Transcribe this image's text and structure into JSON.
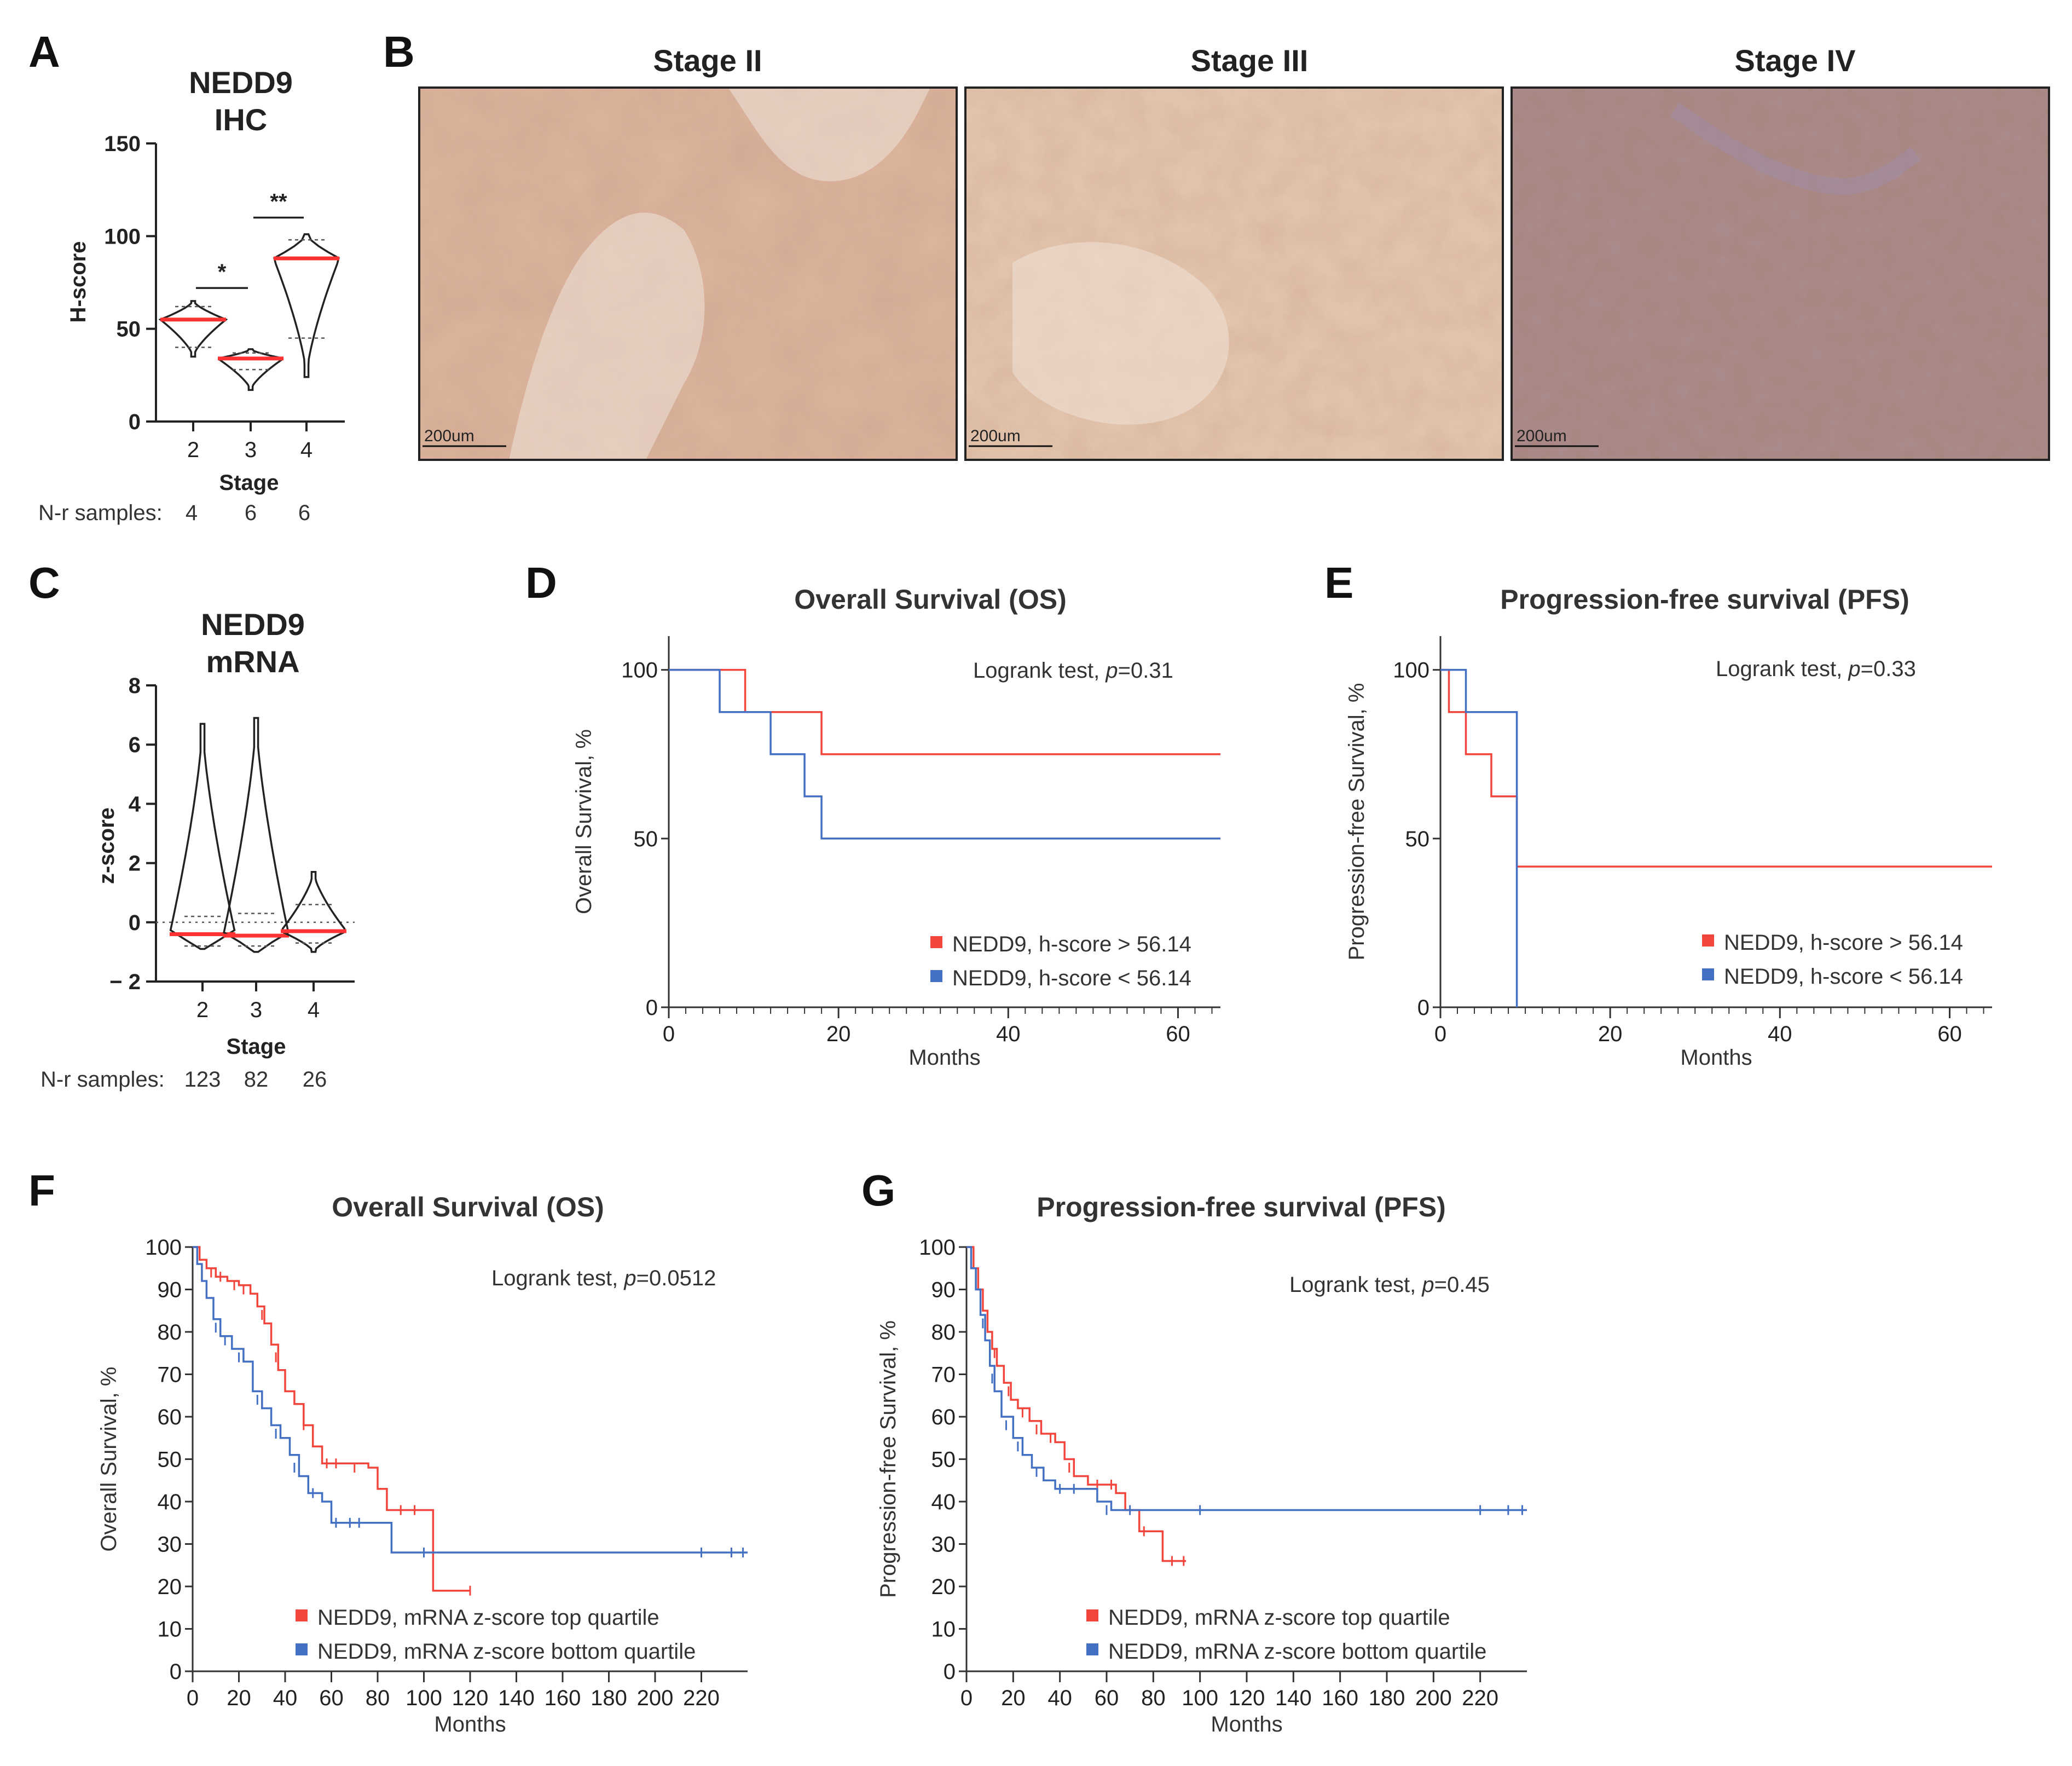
{
  "panel_labels": {
    "a": "A",
    "b": "B",
    "c": "C",
    "d": "D",
    "e": "E",
    "f": "F",
    "g": "G"
  },
  "colors": {
    "high": "#f2463c",
    "low": "#4470c4",
    "median": "#ff3333"
  },
  "panel_a": {
    "title1": "NEDD9",
    "title2": "IHC",
    "nr_label": "N-r samples:",
    "nr": [
      "4",
      "6",
      "6"
    ]
  },
  "panel_b": {
    "images": [
      {
        "title": "Stage II",
        "scale": "200um",
        "tone": "#dcb49c"
      },
      {
        "title": "Stage III",
        "scale": "200um",
        "tone": "#e3c4ad"
      },
      {
        "title": "Stage IV",
        "scale": "200um",
        "tone": "#a8857f"
      }
    ]
  },
  "panel_c": {
    "title1": "NEDD9",
    "title2": "mRNA",
    "nr_label": "N-r samples:",
    "nr": [
      "123",
      "82",
      "26"
    ]
  },
  "chart_data": [
    {
      "id": "A",
      "type": "violin",
      "categories": [
        "2",
        "3",
        "4"
      ],
      "xlabel": "Stage",
      "ylabel": "H-score",
      "ylim": [
        0,
        150
      ],
      "yticks": [
        "0",
        "50",
        "100",
        "150"
      ],
      "violins": [
        {
          "min": 35,
          "max": 65,
          "median": 55,
          "q1": 40,
          "q3": 62
        },
        {
          "min": 17,
          "max": 39,
          "median": 34,
          "q1": 28,
          "q3": 37
        },
        {
          "min": 24,
          "max": 101,
          "median": 88,
          "q1": 45,
          "q3": 98
        }
      ],
      "significance": [
        {
          "from": 0,
          "to": 1,
          "y": 72,
          "label": "*"
        },
        {
          "from": 1,
          "to": 2,
          "y": 110,
          "label": "**"
        }
      ]
    },
    {
      "id": "C",
      "type": "violin",
      "categories": [
        "2",
        "3",
        "4"
      ],
      "xlabel": "Stage",
      "ylabel": "z-score",
      "ylim": [
        -2,
        8
      ],
      "yticks": [
        "− 2",
        "0",
        "2",
        "4",
        "6",
        "8"
      ],
      "zero_line": true,
      "violins": [
        {
          "min": -0.9,
          "max": 6.7,
          "median": -0.4,
          "q1": -0.8,
          "q3": 0.2
        },
        {
          "min": -1.0,
          "max": 6.9,
          "median": -0.45,
          "q1": -0.8,
          "q3": 0.3
        },
        {
          "min": -1.0,
          "max": 1.7,
          "median": -0.3,
          "q1": -0.7,
          "q3": 0.6
        }
      ]
    },
    {
      "id": "D",
      "type": "line",
      "title": "Overall Survival (OS)",
      "xlabel": "Months",
      "ylabel": "Overall Survival, %",
      "xlim": [
        0,
        65
      ],
      "ylim": [
        0,
        110
      ],
      "xticks": [
        "0",
        "20",
        "40",
        "60"
      ],
      "yticks": [
        "0",
        "50",
        "100"
      ],
      "note_prefix": "Logrank test, ",
      "note_p": "p",
      "note_value": "=0.31",
      "series": [
        {
          "name": "NEDD9, h-score > 56.14",
          "color": "#f2463c",
          "steps": [
            [
              0,
              100
            ],
            [
              9,
              87.5
            ],
            [
              18,
              75
            ],
            [
              65,
              75
            ]
          ]
        },
        {
          "name": "NEDD9, h-score < 56.14",
          "color": "#4470c4",
          "steps": [
            [
              0,
              100
            ],
            [
              6,
              87.5
            ],
            [
              12,
              75
            ],
            [
              16,
              62.5
            ],
            [
              18,
              50
            ],
            [
              65,
              50
            ]
          ]
        }
      ]
    },
    {
      "id": "E",
      "type": "line",
      "title": "Progression-free survival (PFS)",
      "xlabel": "Months",
      "ylabel": "Progression-free Survival, %",
      "xlim": [
        0,
        65
      ],
      "ylim": [
        0,
        110
      ],
      "xticks": [
        "0",
        "20",
        "40",
        "60"
      ],
      "yticks": [
        "0",
        "50",
        "100"
      ],
      "note_prefix": "Logrank test, ",
      "note_p": "p",
      "note_value": "=0.33",
      "series": [
        {
          "name": "NEDD9, h-score > 56.14",
          "color": "#f2463c",
          "steps": [
            [
              0,
              100
            ],
            [
              1,
              87.5
            ],
            [
              3,
              75
            ],
            [
              6,
              62.5
            ],
            [
              9,
              41.7
            ],
            [
              65,
              41.7
            ]
          ]
        },
        {
          "name": "NEDD9, h-score < 56.14",
          "color": "#4470c4",
          "steps": [
            [
              0,
              100
            ],
            [
              3,
              87.5
            ],
            [
              9,
              0
            ]
          ]
        }
      ]
    },
    {
      "id": "F",
      "type": "line",
      "title": "Overall Survival (OS)",
      "xlabel": "Months",
      "ylabel": "Overall Survival, %",
      "xlim": [
        0,
        240
      ],
      "ylim": [
        0,
        100
      ],
      "xticks": [
        "0",
        "20",
        "40",
        "60",
        "80",
        "100",
        "120",
        "140",
        "160",
        "180",
        "200",
        "220"
      ],
      "yticks": [
        "0",
        "10",
        "20",
        "30",
        "40",
        "50",
        "60",
        "70",
        "80",
        "90",
        "100"
      ],
      "note_prefix": "Logrank test, ",
      "note_p": "p",
      "note_value": "=0.0512",
      "series": [
        {
          "name": "NEDD9, mRNA z-score top quartile",
          "color": "#f2463c",
          "steps": [
            [
              0,
              100
            ],
            [
              3,
              97
            ],
            [
              6,
              95
            ],
            [
              10,
              93
            ],
            [
              15,
              92
            ],
            [
              20,
              91
            ],
            [
              25,
              89
            ],
            [
              28,
              86
            ],
            [
              31,
              82
            ],
            [
              34,
              77
            ],
            [
              37,
              71
            ],
            [
              40,
              66
            ],
            [
              44,
              63
            ],
            [
              48,
              58
            ],
            [
              52,
              53
            ],
            [
              56,
              49
            ],
            [
              64,
              49
            ],
            [
              76,
              48
            ],
            [
              80,
              43
            ],
            [
              84,
              38
            ],
            [
              104,
              38
            ],
            [
              104,
              19
            ],
            [
              120,
              19
            ]
          ],
          "censors": [
            [
              8,
              94
            ],
            [
              12,
              93
            ],
            [
              18,
              91
            ],
            [
              22,
              90
            ],
            [
              30,
              84
            ],
            [
              36,
              74
            ],
            [
              48,
              58
            ],
            [
              58,
              49
            ],
            [
              62,
              49
            ],
            [
              70,
              48
            ],
            [
              90,
              38
            ],
            [
              96,
              38
            ],
            [
              120,
              19
            ]
          ]
        },
        {
          "name": "NEDD9, mRNA z-score bottom quartile",
          "color": "#4470c4",
          "steps": [
            [
              0,
              100
            ],
            [
              2,
              96
            ],
            [
              4,
              92
            ],
            [
              6,
              88
            ],
            [
              9,
              83
            ],
            [
              12,
              79
            ],
            [
              17,
              76
            ],
            [
              22,
              73
            ],
            [
              26,
              66
            ],
            [
              30,
              62
            ],
            [
              34,
              58
            ],
            [
              38,
              55
            ],
            [
              42,
              51
            ],
            [
              46,
              46
            ],
            [
              50,
              42
            ],
            [
              56,
              40
            ],
            [
              60,
              35
            ],
            [
              74,
              35
            ],
            [
              80,
              35
            ],
            [
              86,
              28
            ],
            [
              240,
              28
            ]
          ],
          "censors": [
            [
              10,
              81
            ],
            [
              14,
              78
            ],
            [
              20,
              74
            ],
            [
              28,
              64
            ],
            [
              36,
              56
            ],
            [
              44,
              48
            ],
            [
              52,
              42
            ],
            [
              62,
              35
            ],
            [
              68,
              35
            ],
            [
              72,
              35
            ],
            [
              100,
              28
            ],
            [
              220,
              28
            ],
            [
              233,
              28
            ],
            [
              238,
              28
            ]
          ]
        }
      ]
    },
    {
      "id": "G",
      "type": "line",
      "title": "Progression-free survival (PFS)",
      "xlabel": "Months",
      "ylabel": "Progression-free Survival, %",
      "xlim": [
        0,
        240
      ],
      "ylim": [
        0,
        100
      ],
      "xticks": [
        "0",
        "20",
        "40",
        "60",
        "80",
        "100",
        "120",
        "140",
        "160",
        "180",
        "200",
        "220"
      ],
      "yticks": [
        "0",
        "10",
        "20",
        "30",
        "40",
        "50",
        "60",
        "70",
        "80",
        "90",
        "100"
      ],
      "note_prefix": "Logrank test, ",
      "note_p": "p",
      "note_value": "=0.45",
      "series": [
        {
          "name": "NEDD9, mRNA z-score top quartile",
          "color": "#f2463c",
          "steps": [
            [
              0,
              100
            ],
            [
              3,
              95
            ],
            [
              5,
              90
            ],
            [
              7,
              85
            ],
            [
              9,
              80
            ],
            [
              11,
              76
            ],
            [
              13,
              72
            ],
            [
              16,
              68
            ],
            [
              19,
              64
            ],
            [
              22,
              62
            ],
            [
              27,
              59
            ],
            [
              32,
              56
            ],
            [
              38,
              54
            ],
            [
              42,
              50
            ],
            [
              46,
              46
            ],
            [
              52,
              44
            ],
            [
              58,
              44
            ],
            [
              64,
              42
            ],
            [
              68,
              38
            ],
            [
              74,
              33
            ],
            [
              80,
              33
            ],
            [
              84,
              26
            ],
            [
              94,
              26
            ]
          ],
          "censors": [
            [
              12,
              75
            ],
            [
              18,
              66
            ],
            [
              24,
              61
            ],
            [
              30,
              57
            ],
            [
              36,
              55
            ],
            [
              44,
              48
            ],
            [
              56,
              44
            ],
            [
              62,
              44
            ],
            [
              76,
              33
            ],
            [
              88,
              26
            ],
            [
              93,
              26
            ]
          ]
        },
        {
          "name": "NEDD9, mRNA z-score bottom quartile",
          "color": "#4470c4",
          "steps": [
            [
              0,
              100
            ],
            [
              2,
              95
            ],
            [
              4,
              90
            ],
            [
              6,
              84
            ],
            [
              8,
              78
            ],
            [
              10,
              72
            ],
            [
              12,
              66
            ],
            [
              15,
              60
            ],
            [
              20,
              55
            ],
            [
              24,
              51
            ],
            [
              28,
              48
            ],
            [
              33,
              45
            ],
            [
              38,
              43
            ],
            [
              50,
              43
            ],
            [
              56,
              40
            ],
            [
              62,
              38
            ],
            [
              240,
              38
            ]
          ],
          "censors": [
            [
              7,
              82
            ],
            [
              11,
              69
            ],
            [
              17,
              58
            ],
            [
              22,
              53
            ],
            [
              30,
              47
            ],
            [
              40,
              43
            ],
            [
              46,
              43
            ],
            [
              60,
              38
            ],
            [
              70,
              38
            ],
            [
              100,
              38
            ],
            [
              220,
              38
            ],
            [
              232,
              38
            ],
            [
              238,
              38
            ]
          ]
        }
      ]
    }
  ]
}
